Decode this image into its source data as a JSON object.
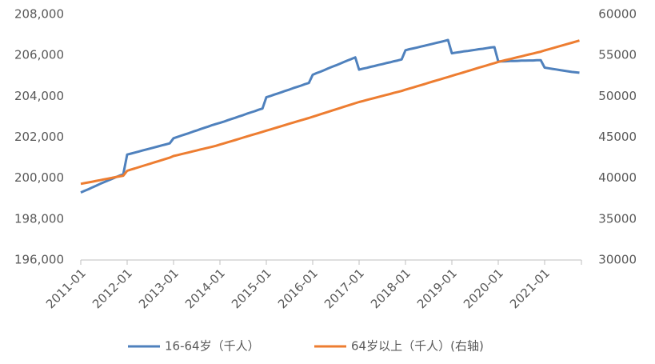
{
  "chart_data": {
    "type": "line",
    "x": [
      "2011-01",
      null,
      null,
      null,
      null,
      null,
      null,
      null,
      null,
      null,
      null,
      null,
      "2012-01",
      null,
      null,
      null,
      null,
      null,
      null,
      null,
      null,
      null,
      null,
      null,
      "2013-01",
      null,
      null,
      null,
      null,
      null,
      null,
      null,
      null,
      null,
      null,
      null,
      "2014-01",
      null,
      null,
      null,
      null,
      null,
      null,
      null,
      null,
      null,
      null,
      null,
      "2015-01",
      null,
      null,
      null,
      null,
      null,
      null,
      null,
      null,
      null,
      null,
      null,
      "2016-01",
      null,
      null,
      null,
      null,
      null,
      null,
      null,
      null,
      null,
      null,
      null,
      "2017-01",
      null,
      null,
      null,
      null,
      null,
      null,
      null,
      null,
      null,
      null,
      null,
      "2018-01",
      null,
      null,
      null,
      null,
      null,
      null,
      null,
      null,
      null,
      null,
      null,
      "2019-01",
      null,
      null,
      null,
      null,
      null,
      null,
      null,
      null,
      null,
      null,
      null,
      "2020-01",
      null,
      null,
      null,
      null,
      null,
      null,
      null,
      null,
      null,
      null,
      null,
      "2021-01",
      null,
      null,
      null,
      null,
      null,
      null,
      null,
      null,
      null
    ],
    "series": [
      {
        "name": "16-64岁（千人）",
        "color": "#4f81bd",
        "values": [
          199300,
          199380,
          199460,
          199550,
          199630,
          199720,
          199800,
          199880,
          199960,
          200040,
          200120,
          200200,
          201150,
          201200,
          201250,
          201300,
          201350,
          201400,
          201450,
          201500,
          201550,
          201600,
          201650,
          201700,
          201950,
          202010,
          202080,
          202140,
          202200,
          202270,
          202330,
          202400,
          202460,
          202520,
          202590,
          202650,
          202700,
          202760,
          202830,
          202890,
          202950,
          203020,
          203080,
          203150,
          203210,
          203270,
          203340,
          203400,
          203950,
          204010,
          204080,
          204140,
          204200,
          204270,
          204330,
          204400,
          204460,
          204520,
          204590,
          204650,
          205050,
          205130,
          205200,
          205280,
          205360,
          205440,
          205510,
          205590,
          205670,
          205750,
          205820,
          205900,
          205300,
          205350,
          205390,
          205440,
          205480,
          205530,
          205570,
          205620,
          205660,
          205710,
          205750,
          205800,
          206250,
          206300,
          206340,
          206380,
          206430,
          206470,
          206520,
          206560,
          206610,
          206650,
          206700,
          206750,
          206100,
          206130,
          206160,
          206190,
          206210,
          206240,
          206270,
          206300,
          206320,
          206350,
          206380,
          206400,
          205700,
          205700,
          205710,
          205720,
          205720,
          205730,
          205740,
          205740,
          205750,
          205750,
          205760,
          205760,
          205400,
          205370,
          205340,
          205310,
          205280,
          205250,
          205220,
          205190,
          205170,
          205150
        ]
      },
      {
        "name": "64岁以上（千人）(右轴)",
        "color": "#ed7d31",
        "axis": "y2",
        "values": [
          39300,
          39390,
          39480,
          39570,
          39660,
          39750,
          39850,
          39940,
          40030,
          40120,
          40210,
          40300,
          40900,
          41050,
          41190,
          41340,
          41480,
          41630,
          41770,
          41920,
          42060,
          42210,
          42350,
          42500,
          42700,
          42810,
          42930,
          43040,
          43150,
          43270,
          43380,
          43500,
          43610,
          43720,
          43840,
          43950,
          44100,
          44240,
          44380,
          44520,
          44660,
          44800,
          44950,
          45090,
          45230,
          45370,
          45510,
          45650,
          45800,
          45940,
          46080,
          46220,
          46360,
          46500,
          46650,
          46790,
          46930,
          47070,
          47210,
          47350,
          47500,
          47650,
          47800,
          47950,
          48100,
          48250,
          48400,
          48550,
          48700,
          48850,
          49000,
          49150,
          49300,
          49420,
          49550,
          49670,
          49790,
          49920,
          50040,
          50160,
          50280,
          50410,
          50530,
          50650,
          50800,
          50940,
          51080,
          51220,
          51360,
          51500,
          51650,
          51790,
          51930,
          52070,
          52210,
          52350,
          52500,
          52640,
          52780,
          52920,
          53060,
          53200,
          53350,
          53490,
          53630,
          53770,
          53910,
          54050,
          54200,
          54310,
          54430,
          54540,
          54650,
          54770,
          54880,
          55000,
          55110,
          55220,
          55340,
          55450,
          55600,
          55730,
          55870,
          56000,
          56130,
          56270,
          56400,
          56530,
          56670,
          56800
        ]
      }
    ],
    "ylim": [
      196000,
      208000
    ],
    "yticks": [
      {
        "value": 196000,
        "label": "196,000"
      },
      {
        "value": 198000,
        "label": "198,000"
      },
      {
        "value": 200000,
        "label": "200,000"
      },
      {
        "value": 202000,
        "label": "202,000"
      },
      {
        "value": 204000,
        "label": "204,000"
      },
      {
        "value": 206000,
        "label": "206,000"
      },
      {
        "value": 208000,
        "label": "208,000"
      }
    ],
    "y2lim": [
      30000,
      60000
    ],
    "y2ticks": [
      30000,
      35000,
      40000,
      45000,
      50000,
      55000,
      60000
    ],
    "grid": false,
    "legend": "bottom"
  }
}
